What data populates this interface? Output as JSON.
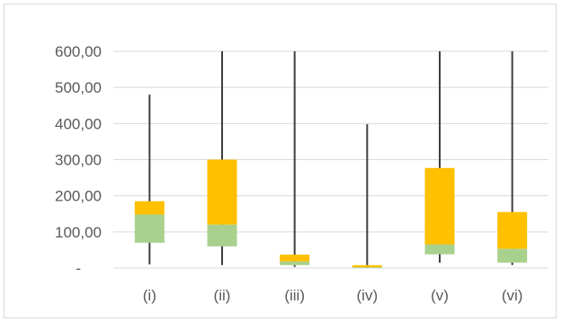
{
  "chart_data": {
    "type": "box",
    "categories": [
      "(i)",
      "(ii)",
      "(iii)",
      "(iv)",
      "(v)",
      "(vi)"
    ],
    "y_ticks": [
      {
        "value": 0,
        "label": "-"
      },
      {
        "value": 100,
        "label": "100,00"
      },
      {
        "value": 200,
        "label": "200,00"
      },
      {
        "value": 300,
        "label": "300,00"
      },
      {
        "value": 400,
        "label": "400,00"
      },
      {
        "value": 500,
        "label": "500,00"
      },
      {
        "value": 600,
        "label": "600,00"
      }
    ],
    "ylim": [
      0,
      600
    ],
    "grid": true,
    "boxes": [
      {
        "category": "(i)",
        "min": 10,
        "q1": 70,
        "median": 148,
        "q3": 185,
        "max": 480
      },
      {
        "category": "(ii)",
        "min": 8,
        "q1": 60,
        "median": 120,
        "q3": 300,
        "max": 600
      },
      {
        "category": "(iii)",
        "min": 3,
        "q1": 8,
        "median": 18,
        "q3": 37,
        "max": 600
      },
      {
        "category": "(iv)",
        "min": 0,
        "q1": 0,
        "median": 2,
        "q3": 8,
        "max": 398
      },
      {
        "category": "(v)",
        "min": 15,
        "q1": 38,
        "median": 65,
        "q3": 277,
        "max": 600
      },
      {
        "category": "(vi)",
        "min": 8,
        "q1": 15,
        "median": 53,
        "q3": 155,
        "max": 600
      }
    ],
    "colors": {
      "lower_box": "#a9d18e",
      "upper_box": "#ffc000",
      "whisker": "#404040",
      "grid": "#d9d9d9",
      "text": "#595959"
    }
  }
}
